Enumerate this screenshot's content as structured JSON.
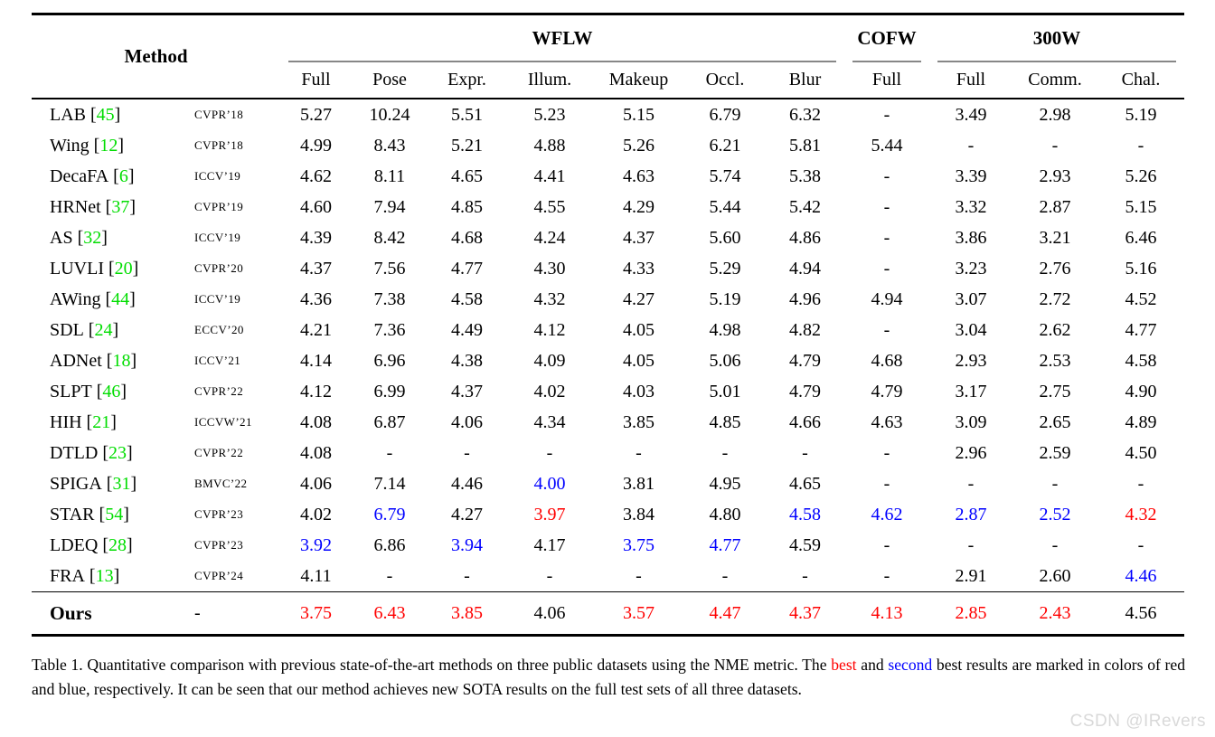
{
  "colors": {
    "best": "#ff0000",
    "second": "#0000ff",
    "citation": "#00dd00",
    "watermark": "#d9d9d9",
    "rule": "#000000",
    "cmidrule": "#878787"
  },
  "table": {
    "header": {
      "method_label": "Method",
      "groups": [
        {
          "label": "WFLW",
          "span": 7
        },
        {
          "label": "COFW",
          "span": 1
        },
        {
          "label": "300W",
          "span": 3
        }
      ],
      "subcolumns": [
        "Full",
        "Pose",
        "Expr.",
        "Illum.",
        "Makeup",
        "Occl.",
        "Blur",
        "Full",
        "Full",
        "Comm.",
        "Chal."
      ]
    },
    "rows": [
      {
        "method": "LAB",
        "cite": "45",
        "venue": "CVPR’18",
        "values": [
          {
            "v": "5.27"
          },
          {
            "v": "10.24"
          },
          {
            "v": "5.51"
          },
          {
            "v": "5.23"
          },
          {
            "v": "5.15"
          },
          {
            "v": "6.79"
          },
          {
            "v": "6.32"
          },
          {
            "v": "-"
          },
          {
            "v": "3.49"
          },
          {
            "v": "2.98"
          },
          {
            "v": "5.19"
          }
        ]
      },
      {
        "method": "Wing",
        "cite": "12",
        "venue": "CVPR’18",
        "values": [
          {
            "v": "4.99"
          },
          {
            "v": "8.43"
          },
          {
            "v": "5.21"
          },
          {
            "v": "4.88"
          },
          {
            "v": "5.26"
          },
          {
            "v": "6.21"
          },
          {
            "v": "5.81"
          },
          {
            "v": "5.44"
          },
          {
            "v": "-"
          },
          {
            "v": "-"
          },
          {
            "v": "-"
          }
        ]
      },
      {
        "method": "DecaFA",
        "cite": "6",
        "venue": "ICCV’19",
        "values": [
          {
            "v": "4.62"
          },
          {
            "v": "8.11"
          },
          {
            "v": "4.65"
          },
          {
            "v": "4.41"
          },
          {
            "v": "4.63"
          },
          {
            "v": "5.74"
          },
          {
            "v": "5.38"
          },
          {
            "v": "-"
          },
          {
            "v": "3.39"
          },
          {
            "v": "2.93"
          },
          {
            "v": "5.26"
          }
        ]
      },
      {
        "method": "HRNet",
        "cite": "37",
        "venue": "CVPR’19",
        "values": [
          {
            "v": "4.60"
          },
          {
            "v": "7.94"
          },
          {
            "v": "4.85"
          },
          {
            "v": "4.55"
          },
          {
            "v": "4.29"
          },
          {
            "v": "5.44"
          },
          {
            "v": "5.42"
          },
          {
            "v": "-"
          },
          {
            "v": "3.32"
          },
          {
            "v": "2.87"
          },
          {
            "v": "5.15"
          }
        ]
      },
      {
        "method": "AS",
        "cite": "32",
        "venue": "ICCV’19",
        "values": [
          {
            "v": "4.39"
          },
          {
            "v": "8.42"
          },
          {
            "v": "4.68"
          },
          {
            "v": "4.24"
          },
          {
            "v": "4.37"
          },
          {
            "v": "5.60"
          },
          {
            "v": "4.86"
          },
          {
            "v": "-"
          },
          {
            "v": "3.86"
          },
          {
            "v": "3.21"
          },
          {
            "v": "6.46"
          }
        ]
      },
      {
        "method": "LUVLI",
        "cite": "20",
        "venue": "CVPR’20",
        "values": [
          {
            "v": "4.37"
          },
          {
            "v": "7.56"
          },
          {
            "v": "4.77"
          },
          {
            "v": "4.30"
          },
          {
            "v": "4.33"
          },
          {
            "v": "5.29"
          },
          {
            "v": "4.94"
          },
          {
            "v": "-"
          },
          {
            "v": "3.23"
          },
          {
            "v": "2.76"
          },
          {
            "v": "5.16"
          }
        ]
      },
      {
        "method": "AWing",
        "cite": "44",
        "venue": "ICCV’19",
        "values": [
          {
            "v": "4.36"
          },
          {
            "v": "7.38"
          },
          {
            "v": "4.58"
          },
          {
            "v": "4.32"
          },
          {
            "v": "4.27"
          },
          {
            "v": "5.19"
          },
          {
            "v": "4.96"
          },
          {
            "v": "4.94"
          },
          {
            "v": "3.07"
          },
          {
            "v": "2.72"
          },
          {
            "v": "4.52"
          }
        ]
      },
      {
        "method": "SDL",
        "cite": "24",
        "venue": "ECCV’20",
        "values": [
          {
            "v": "4.21"
          },
          {
            "v": "7.36"
          },
          {
            "v": "4.49"
          },
          {
            "v": "4.12"
          },
          {
            "v": "4.05"
          },
          {
            "v": "4.98"
          },
          {
            "v": "4.82"
          },
          {
            "v": "-"
          },
          {
            "v": "3.04"
          },
          {
            "v": "2.62"
          },
          {
            "v": "4.77"
          }
        ]
      },
      {
        "method": "ADNet",
        "cite": "18",
        "venue": "ICCV’21",
        "values": [
          {
            "v": "4.14"
          },
          {
            "v": "6.96"
          },
          {
            "v": "4.38"
          },
          {
            "v": "4.09"
          },
          {
            "v": "4.05"
          },
          {
            "v": "5.06"
          },
          {
            "v": "4.79"
          },
          {
            "v": "4.68"
          },
          {
            "v": "2.93"
          },
          {
            "v": "2.53"
          },
          {
            "v": "4.58"
          }
        ]
      },
      {
        "method": "SLPT",
        "cite": "46",
        "venue": "CVPR’22",
        "values": [
          {
            "v": "4.12"
          },
          {
            "v": "6.99"
          },
          {
            "v": "4.37"
          },
          {
            "v": "4.02"
          },
          {
            "v": "4.03"
          },
          {
            "v": "5.01"
          },
          {
            "v": "4.79"
          },
          {
            "v": "4.79"
          },
          {
            "v": "3.17"
          },
          {
            "v": "2.75"
          },
          {
            "v": "4.90"
          }
        ]
      },
      {
        "method": "HIH",
        "cite": "21",
        "venue": "ICCVW’21",
        "values": [
          {
            "v": "4.08"
          },
          {
            "v": "6.87"
          },
          {
            "v": "4.06"
          },
          {
            "v": "4.34"
          },
          {
            "v": "3.85"
          },
          {
            "v": "4.85"
          },
          {
            "v": "4.66"
          },
          {
            "v": "4.63"
          },
          {
            "v": "3.09"
          },
          {
            "v": "2.65"
          },
          {
            "v": "4.89"
          }
        ]
      },
      {
        "method": "DTLD",
        "cite": "23",
        "venue": "CVPR’22",
        "values": [
          {
            "v": "4.08"
          },
          {
            "v": "-"
          },
          {
            "v": "-"
          },
          {
            "v": "-"
          },
          {
            "v": "-"
          },
          {
            "v": "-"
          },
          {
            "v": "-"
          },
          {
            "v": "-"
          },
          {
            "v": "2.96"
          },
          {
            "v": "2.59"
          },
          {
            "v": "4.50"
          }
        ]
      },
      {
        "method": "SPIGA",
        "cite": "31",
        "venue": "BMVC’22",
        "values": [
          {
            "v": "4.06"
          },
          {
            "v": "7.14"
          },
          {
            "v": "4.46"
          },
          {
            "v": "4.00",
            "c": "second"
          },
          {
            "v": "3.81"
          },
          {
            "v": "4.95"
          },
          {
            "v": "4.65"
          },
          {
            "v": "-"
          },
          {
            "v": "-"
          },
          {
            "v": "-"
          },
          {
            "v": "-"
          }
        ]
      },
      {
        "method": "STAR",
        "cite": "54",
        "venue": "CVPR’23",
        "values": [
          {
            "v": "4.02"
          },
          {
            "v": "6.79",
            "c": "second"
          },
          {
            "v": "4.27"
          },
          {
            "v": "3.97",
            "c": "best"
          },
          {
            "v": "3.84"
          },
          {
            "v": "4.80"
          },
          {
            "v": "4.58",
            "c": "second"
          },
          {
            "v": "4.62",
            "c": "second"
          },
          {
            "v": "2.87",
            "c": "second"
          },
          {
            "v": "2.52",
            "c": "second"
          },
          {
            "v": "4.32",
            "c": "best"
          }
        ]
      },
      {
        "method": "LDEQ",
        "cite": "28",
        "venue": "CVPR’23",
        "values": [
          {
            "v": "3.92",
            "c": "second"
          },
          {
            "v": "6.86"
          },
          {
            "v": "3.94",
            "c": "second"
          },
          {
            "v": "4.17"
          },
          {
            "v": "3.75",
            "c": "second"
          },
          {
            "v": "4.77",
            "c": "second"
          },
          {
            "v": "4.59"
          },
          {
            "v": "-"
          },
          {
            "v": "-"
          },
          {
            "v": "-"
          },
          {
            "v": "-"
          }
        ]
      },
      {
        "method": "FRA",
        "cite": "13",
        "venue": "CVPR’24",
        "values": [
          {
            "v": "4.11"
          },
          {
            "v": "-"
          },
          {
            "v": "-"
          },
          {
            "v": "-"
          },
          {
            "v": "-"
          },
          {
            "v": "-"
          },
          {
            "v": "-"
          },
          {
            "v": "-"
          },
          {
            "v": "2.91"
          },
          {
            "v": "2.60"
          },
          {
            "v": "4.46",
            "c": "second"
          }
        ]
      }
    ],
    "ours_row": {
      "method": "Ours",
      "venue": "-",
      "values": [
        {
          "v": "3.75",
          "c": "best"
        },
        {
          "v": "6.43",
          "c": "best"
        },
        {
          "v": "3.85",
          "c": "best"
        },
        {
          "v": "4.06"
        },
        {
          "v": "3.57",
          "c": "best"
        },
        {
          "v": "4.47",
          "c": "best"
        },
        {
          "v": "4.37",
          "c": "best"
        },
        {
          "v": "4.13",
          "c": "best"
        },
        {
          "v": "2.85",
          "c": "best"
        },
        {
          "v": "2.43",
          "c": "best"
        },
        {
          "v": "4.56"
        }
      ]
    }
  },
  "caption": {
    "segments": [
      {
        "t": "Table 1.  Quantitative comparison with previous state-of-the-art methods on three public datasets using the NME metric.  The "
      },
      {
        "t": "best",
        "c": "best"
      },
      {
        "t": " and "
      },
      {
        "t": "second",
        "c": "second"
      },
      {
        "t": " best results are marked in colors of red and blue, respectively. It can be seen that our method achieves new SOTA results on the full test sets of all three datasets."
      }
    ]
  },
  "watermark": "CSDN @IRevers"
}
